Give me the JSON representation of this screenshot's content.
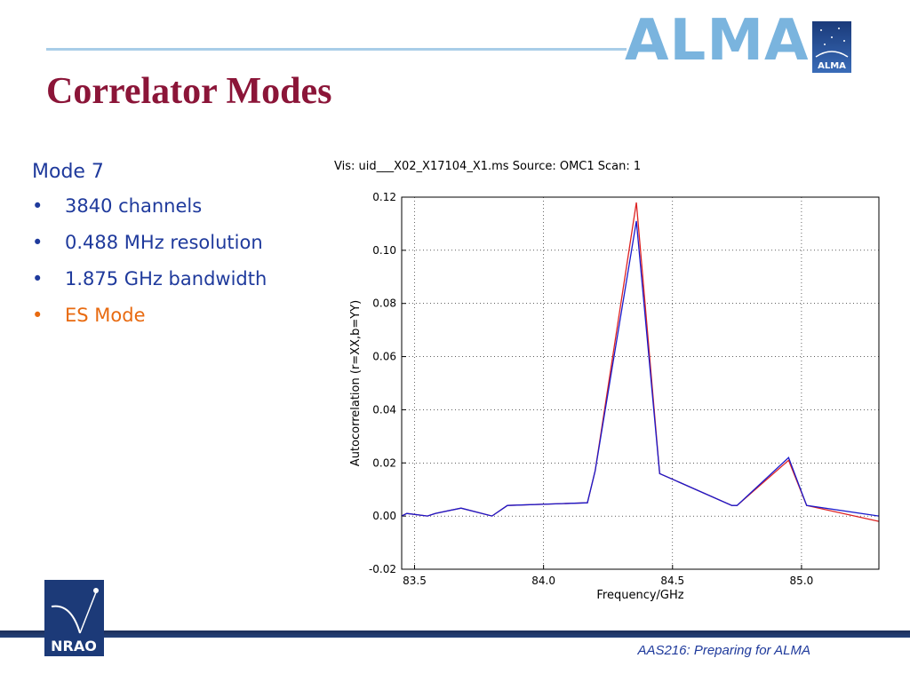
{
  "header": {
    "title": "Correlator Modes",
    "alma_wordmark": "ALMA",
    "alma_logo_text": "ALMA"
  },
  "content": {
    "mode_heading": "Mode 7",
    "bullets": [
      {
        "text": "3840 channels",
        "color": "#1f3a9c"
      },
      {
        "text": "0.488 MHz resolution",
        "color": "#1f3a9c"
      },
      {
        "text": "1.875 GHz bandwidth",
        "color": "#1f3a9c"
      },
      {
        "text": "ES Mode",
        "color": "#e86a10"
      }
    ]
  },
  "footer": {
    "text": "AAS216: Preparing for ALMA",
    "nrao_logo_text": "NRAO"
  },
  "chart_data": {
    "type": "line",
    "title": "Vis: uid___X02_X17104_X1.ms Source: OMC1 Scan: 1",
    "xlabel": "Frequency/GHz",
    "ylabel": "Autocorrelation (r=XX,b=YY)",
    "xlim": [
      83.45,
      85.3
    ],
    "ylim": [
      -0.02,
      0.12
    ],
    "xticks": [
      83.5,
      84.0,
      84.5,
      85.0
    ],
    "xtick_labels": [
      "83.5",
      "84.0",
      "84.5",
      "85.0"
    ],
    "yticks": [
      -0.02,
      0.0,
      0.02,
      0.04,
      0.06,
      0.08,
      0.1,
      0.12
    ],
    "ytick_labels": [
      "-0.02",
      "0.00",
      "0.02",
      "0.04",
      "0.06",
      "0.08",
      "0.10",
      "0.12"
    ],
    "grid": true,
    "series": [
      {
        "color": "#dd2222",
        "values": [
          [
            83.45,
            0.0
          ],
          [
            83.47,
            0.001
          ],
          [
            83.55,
            0.0
          ],
          [
            83.58,
            0.001
          ],
          [
            83.68,
            0.003
          ],
          [
            83.8,
            0.0
          ],
          [
            83.86,
            0.004
          ],
          [
            84.17,
            0.005
          ],
          [
            84.2,
            0.017
          ],
          [
            84.36,
            0.118
          ],
          [
            84.45,
            0.016
          ],
          [
            84.73,
            0.004
          ],
          [
            84.75,
            0.004
          ],
          [
            84.95,
            0.021
          ],
          [
            85.02,
            0.004
          ],
          [
            85.3,
            -0.002
          ]
        ]
      },
      {
        "color": "#1a1acc",
        "values": [
          [
            83.45,
            0.0
          ],
          [
            83.47,
            0.001
          ],
          [
            83.55,
            0.0
          ],
          [
            83.58,
            0.001
          ],
          [
            83.68,
            0.003
          ],
          [
            83.8,
            0.0
          ],
          [
            83.86,
            0.004
          ],
          [
            84.17,
            0.005
          ],
          [
            84.2,
            0.017
          ],
          [
            84.36,
            0.111
          ],
          [
            84.45,
            0.016
          ],
          [
            84.73,
            0.004
          ],
          [
            84.75,
            0.004
          ],
          [
            84.95,
            0.022
          ],
          [
            85.02,
            0.004
          ],
          [
            85.3,
            0.0
          ]
        ]
      }
    ]
  }
}
